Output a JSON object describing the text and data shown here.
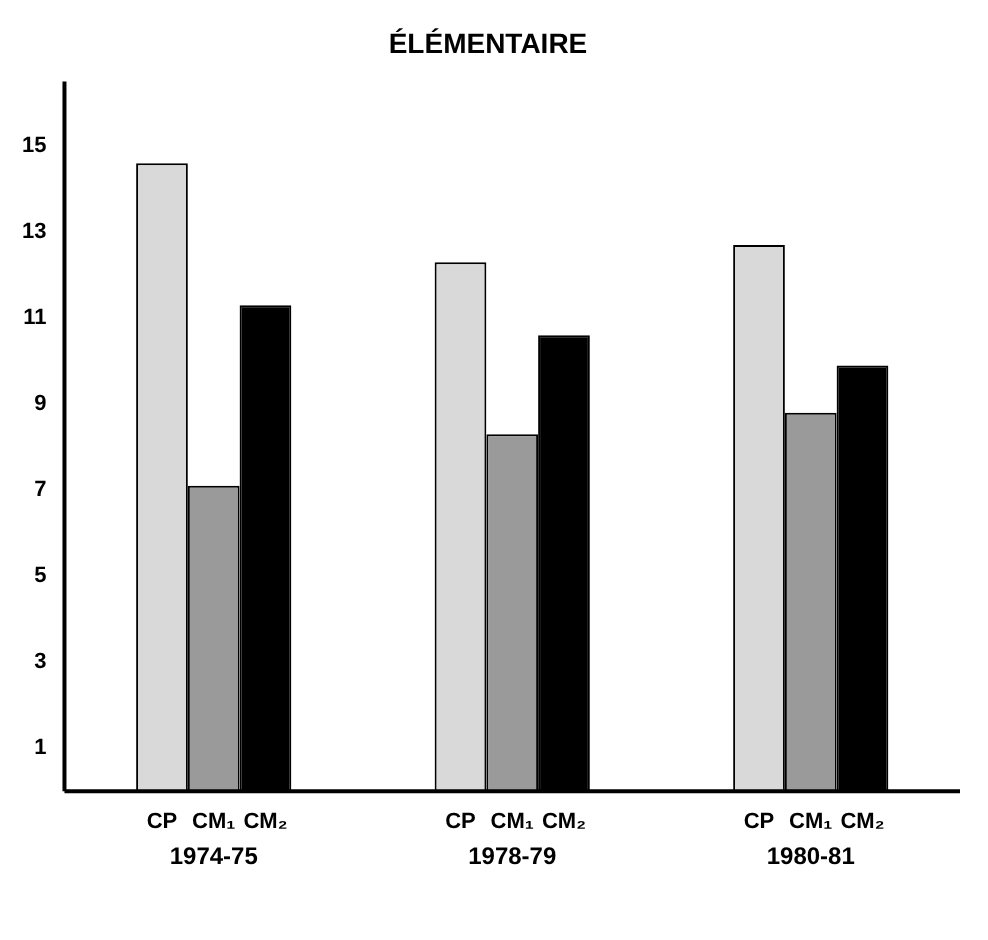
{
  "chart_data": {
    "type": "bar",
    "title": "ÉLÉMENTAIRE",
    "categories": [
      "1974-75",
      "1978-79",
      "1980-81"
    ],
    "series": [
      {
        "name": "CP",
        "color": "#d9d9d9",
        "values": [
          14.6,
          12.3,
          12.7
        ]
      },
      {
        "name": "CM₁",
        "color": "#9a9a9a",
        "values": [
          7.1,
          8.3,
          8.8
        ]
      },
      {
        "name": "CM₂",
        "color": "#000000",
        "values": [
          11.3,
          10.6,
          9.9
        ]
      }
    ],
    "ylim": [
      0,
      16.5
    ],
    "yticks": [
      1,
      3,
      5,
      7,
      9,
      11,
      13,
      15
    ],
    "grid": false,
    "legend": false
  }
}
